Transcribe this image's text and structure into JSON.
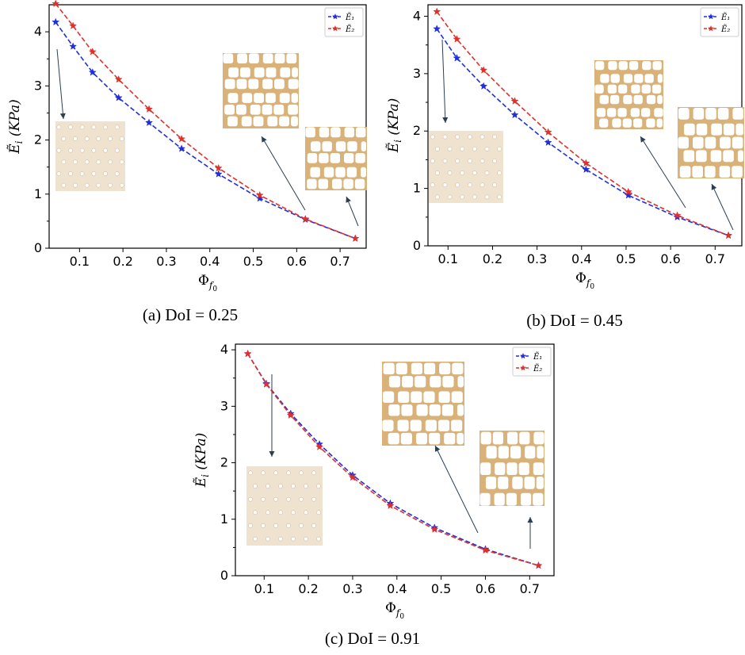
{
  "colors": {
    "series1": "#1f2fe0",
    "series2": "#e0302a",
    "inset_bg": "#efe3cf",
    "inset_wall": "#d9b27a",
    "arrow": "#2b3f52"
  },
  "chart_data": [
    {
      "type": "line",
      "caption": "(a) DoI = 0.25",
      "xlabel": "Φ_{f0}",
      "ylabel": "Ẽ_i (KPa)",
      "xlim": [
        0.03,
        0.76
      ],
      "ylim": [
        0,
        4.5
      ],
      "xticks": [
        "0.1",
        "0.2",
        "0.3",
        "0.4",
        "0.5",
        "0.6",
        "0.7"
      ],
      "yticks": [
        "0",
        "1",
        "2",
        "3",
        "4"
      ],
      "legend_position": "top-right",
      "series": [
        {
          "name": "Ẽ₁",
          "color": "#1f2fe0",
          "x": [
            0.045,
            0.085,
            0.13,
            0.19,
            0.26,
            0.335,
            0.42,
            0.515,
            0.62,
            0.735
          ],
          "y": [
            4.18,
            3.73,
            3.25,
            2.78,
            2.32,
            1.84,
            1.37,
            0.92,
            0.53,
            0.18
          ]
        },
        {
          "name": "Ẽ₂",
          "color": "#e0302a",
          "x": [
            0.045,
            0.085,
            0.13,
            0.19,
            0.26,
            0.335,
            0.42,
            0.515,
            0.62,
            0.735
          ],
          "y": [
            4.52,
            4.11,
            3.63,
            3.12,
            2.57,
            2.02,
            1.48,
            0.98,
            0.54,
            0.18
          ]
        }
      ]
    },
    {
      "type": "line",
      "caption": "(b) DoI = 0.45",
      "xlabel": "Φ_{f0}",
      "ylabel": "Ẽ_i (KPa)",
      "xlim": [
        0.055,
        0.76
      ],
      "ylim": [
        0,
        4.2
      ],
      "xticks": [
        "0.1",
        "0.2",
        "0.3",
        "0.4",
        "0.5",
        "0.6",
        "0.7"
      ],
      "yticks": [
        "0",
        "1",
        "2",
        "3",
        "4"
      ],
      "legend_position": "top-right",
      "series": [
        {
          "name": "Ẽ₁",
          "color": "#1f2fe0",
          "x": [
            0.075,
            0.12,
            0.18,
            0.25,
            0.325,
            0.41,
            0.505,
            0.615,
            0.73
          ],
          "y": [
            3.78,
            3.27,
            2.78,
            2.28,
            1.8,
            1.33,
            0.88,
            0.5,
            0.18
          ]
        },
        {
          "name": "Ẽ₂",
          "color": "#e0302a",
          "x": [
            0.075,
            0.12,
            0.18,
            0.25,
            0.325,
            0.41,
            0.505,
            0.615,
            0.73
          ],
          "y": [
            4.08,
            3.6,
            3.06,
            2.52,
            1.98,
            1.44,
            0.94,
            0.53,
            0.18
          ]
        }
      ]
    },
    {
      "type": "line",
      "caption": "(c) DoI = 0.91",
      "xlabel": "Φ_{f0}",
      "ylabel": "Ẽ_i (KPa)",
      "xlim": [
        0.035,
        0.755
      ],
      "ylim": [
        0,
        4.1
      ],
      "xticks": [
        "0.1",
        "0.2",
        "0.3",
        "0.4",
        "0.5",
        "0.6",
        "0.7"
      ],
      "yticks": [
        "0",
        "1",
        "2",
        "3",
        "4"
      ],
      "legend_position": "top-right",
      "series": [
        {
          "name": "Ẽ₁",
          "color": "#1f2fe0",
          "x": [
            0.063,
            0.105,
            0.16,
            0.225,
            0.3,
            0.385,
            0.485,
            0.6,
            0.72
          ],
          "y": [
            3.93,
            3.4,
            2.87,
            2.33,
            1.78,
            1.28,
            0.85,
            0.47,
            0.18
          ]
        },
        {
          "name": "Ẽ₂",
          "color": "#e0302a",
          "x": [
            0.063,
            0.105,
            0.16,
            0.225,
            0.3,
            0.385,
            0.485,
            0.6,
            0.72
          ],
          "y": [
            3.93,
            3.39,
            2.84,
            2.28,
            1.74,
            1.24,
            0.82,
            0.45,
            0.18
          ]
        }
      ]
    }
  ]
}
